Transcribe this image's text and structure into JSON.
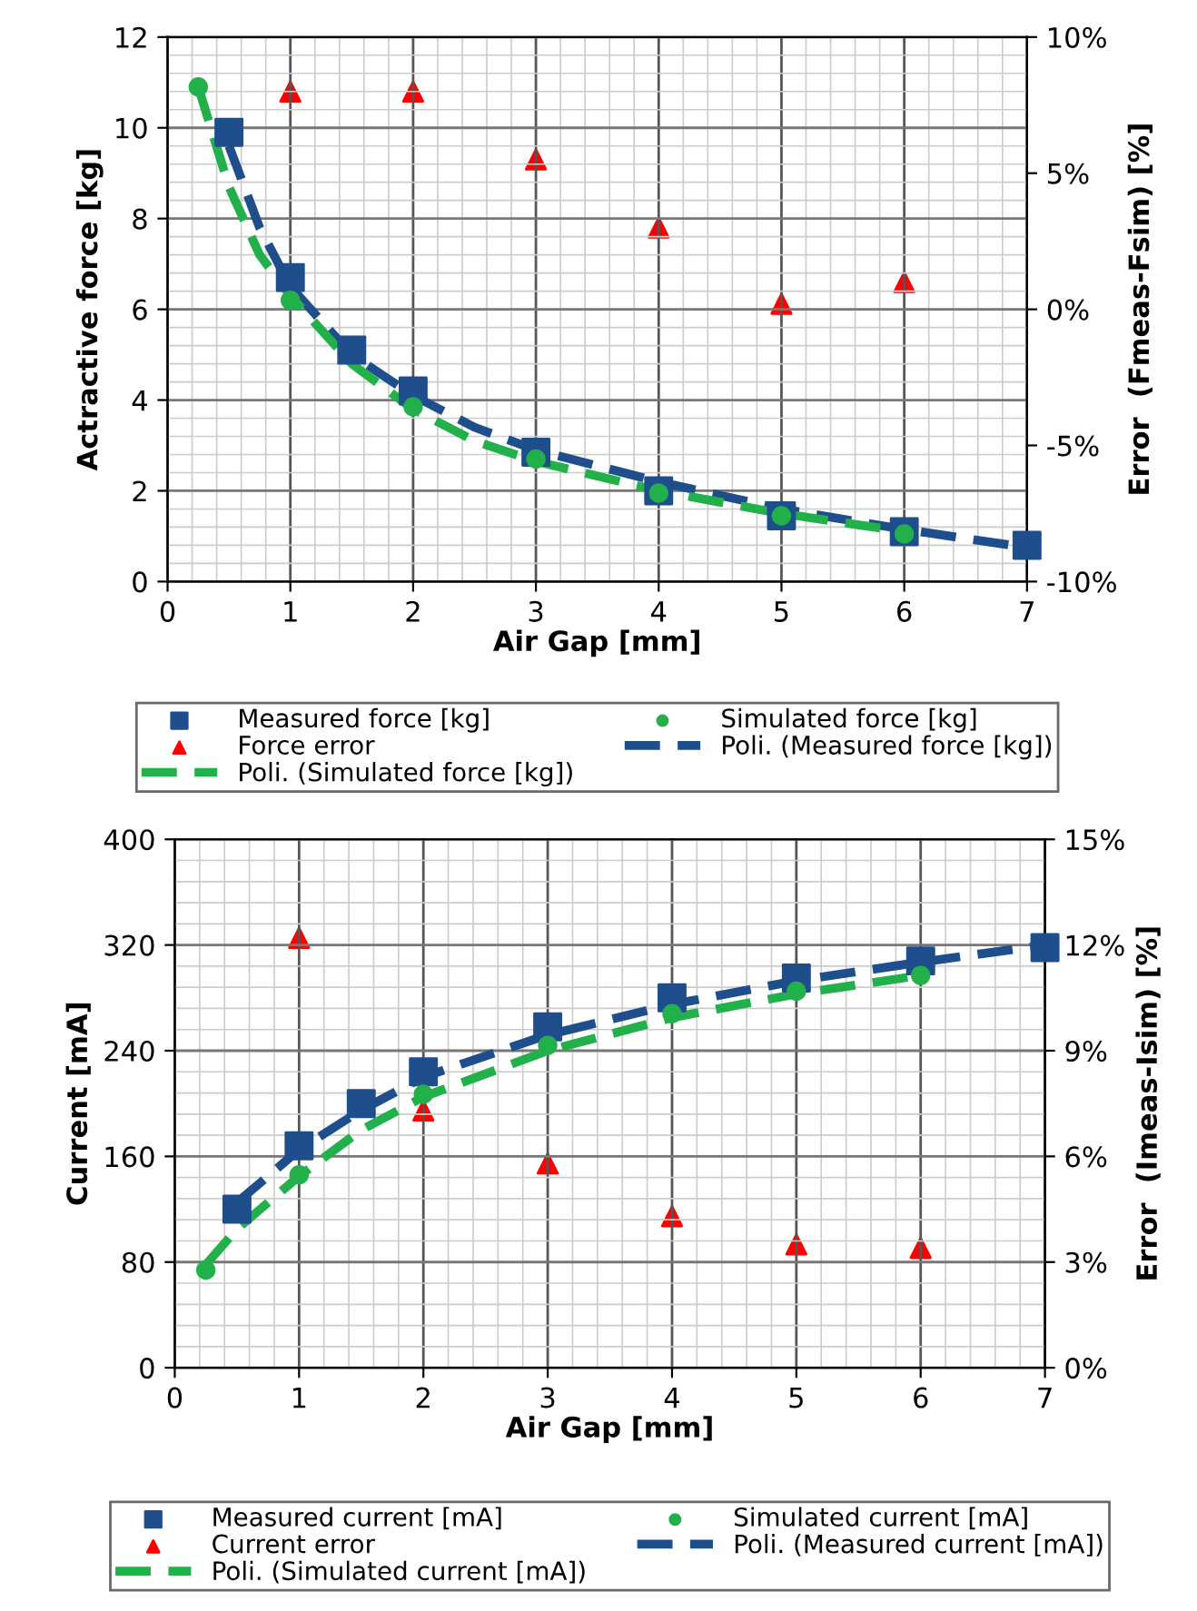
{
  "chart_data": [
    {
      "type": "scatter",
      "xlabel": "Air Gap [mm]",
      "ylabel": "Actractive force [kg]",
      "y2label": "Error  (Fmeas-Fsim) [%]",
      "xlim": [
        0,
        7
      ],
      "xticks": [
        0,
        1,
        2,
        3,
        4,
        5,
        6,
        7
      ],
      "ylim": [
        0,
        12
      ],
      "yticks": [
        0,
        2,
        4,
        6,
        8,
        10,
        12
      ],
      "y2lim": [
        -10,
        10
      ],
      "y2ticks": [
        {
          "value": -10,
          "label": "-10%"
        },
        {
          "value": -5,
          "label": "-5%"
        },
        {
          "value": 0,
          "label": "0%"
        },
        {
          "value": 5,
          "label": "5%"
        },
        {
          "value": 10,
          "label": "10%"
        }
      ],
      "grid": true,
      "legend": "bottom",
      "series": [
        {
          "name": "Measured force [kg]",
          "color": "#1f4e8c",
          "marker": "square",
          "x": [
            0.5,
            1,
            1.5,
            2,
            3,
            4,
            5,
            6,
            7
          ],
          "values": [
            9.9,
            6.7,
            5.1,
            4.2,
            2.85,
            2.0,
            1.45,
            1.1,
            0.8
          ]
        },
        {
          "name": "Simulated force [kg]",
          "color": "#22b04b",
          "marker": "circle",
          "x": [
            0.25,
            1,
            2,
            3,
            4,
            5,
            6
          ],
          "values": [
            10.9,
            6.2,
            3.85,
            2.7,
            1.95,
            1.45,
            1.05
          ]
        },
        {
          "name": "Force error",
          "color": "#ff0000",
          "marker": "triangle",
          "axis": "y2",
          "x": [
            1,
            2,
            3,
            4,
            5,
            6
          ],
          "values": [
            8,
            8,
            5.5,
            3,
            0.2,
            1
          ]
        },
        {
          "name": "Poli. (Measured force [kg])",
          "type": "line",
          "line_style": "dashed",
          "color": "#1f4e8c",
          "x": [
            0.5,
            0.75,
            1,
            1.5,
            2,
            2.5,
            3,
            4,
            5,
            6,
            7
          ],
          "values": [
            9.6,
            7.8,
            6.5,
            5.0,
            4.1,
            3.4,
            2.9,
            2.2,
            1.6,
            1.15,
            0.75
          ]
        },
        {
          "name": "Poli. (Simulated force [kg])",
          "type": "line",
          "line_style": "dashed",
          "color": "#22b04b",
          "x": [
            0.25,
            0.5,
            0.75,
            1,
            1.5,
            2,
            2.5,
            3,
            4,
            5,
            6
          ],
          "values": [
            10.9,
            8.7,
            7.2,
            6.3,
            4.8,
            3.8,
            3.1,
            2.65,
            2.0,
            1.5,
            1.1
          ]
        }
      ]
    },
    {
      "type": "scatter",
      "xlabel": "Air Gap [mm]",
      "ylabel": "Current [mA]",
      "y2label": "Error  (Imeas-Isim) [%]",
      "xlim": [
        0,
        7
      ],
      "xticks": [
        0,
        1,
        2,
        3,
        4,
        5,
        6,
        7
      ],
      "ylim": [
        0,
        400
      ],
      "yticks": [
        0,
        80,
        160,
        240,
        320,
        400
      ],
      "y2lim": [
        0,
        15
      ],
      "y2ticks": [
        {
          "value": 0,
          "label": "0%"
        },
        {
          "value": 3,
          "label": "3%"
        },
        {
          "value": 6,
          "label": "6%"
        },
        {
          "value": 9,
          "label": "9%"
        },
        {
          "value": 12,
          "label": "12%"
        },
        {
          "value": 15,
          "label": "15%"
        }
      ],
      "grid": true,
      "legend": "bottom",
      "series": [
        {
          "name": "Measured current [mA]",
          "color": "#1f4e8c",
          "marker": "square",
          "x": [
            0.5,
            1,
            1.5,
            2,
            3,
            4,
            5,
            6,
            7
          ],
          "values": [
            120,
            168,
            200,
            224,
            258,
            280,
            295,
            308,
            318
          ]
        },
        {
          "name": "Simulated current [mA]",
          "color": "#22b04b",
          "marker": "circle",
          "x": [
            0.25,
            1,
            2,
            3,
            4,
            5,
            6
          ],
          "values": [
            74,
            146,
            207,
            244,
            268,
            285,
            297
          ]
        },
        {
          "name": "Current error",
          "color": "#ff0000",
          "marker": "triangle",
          "axis": "y2",
          "x": [
            1,
            2,
            3,
            4,
            5,
            6
          ],
          "values": [
            12.2,
            7.3,
            5.8,
            4.3,
            3.5,
            3.4
          ]
        },
        {
          "name": "Poli. (Measured current [mA])",
          "type": "line",
          "line_style": "dashed",
          "color": "#1f4e8c",
          "x": [
            0.5,
            1,
            1.5,
            2,
            3,
            4,
            5,
            6,
            7
          ],
          "values": [
            125,
            165,
            195,
            220,
            252,
            275,
            293,
            307,
            320
          ]
        },
        {
          "name": "Poli. (Simulated current [mA])",
          "type": "line",
          "line_style": "dashed",
          "color": "#22b04b",
          "x": [
            0.25,
            0.5,
            1,
            1.5,
            2,
            3,
            4,
            5,
            6
          ],
          "values": [
            78,
            105,
            145,
            180,
            205,
            240,
            265,
            283,
            297
          ]
        }
      ]
    }
  ]
}
